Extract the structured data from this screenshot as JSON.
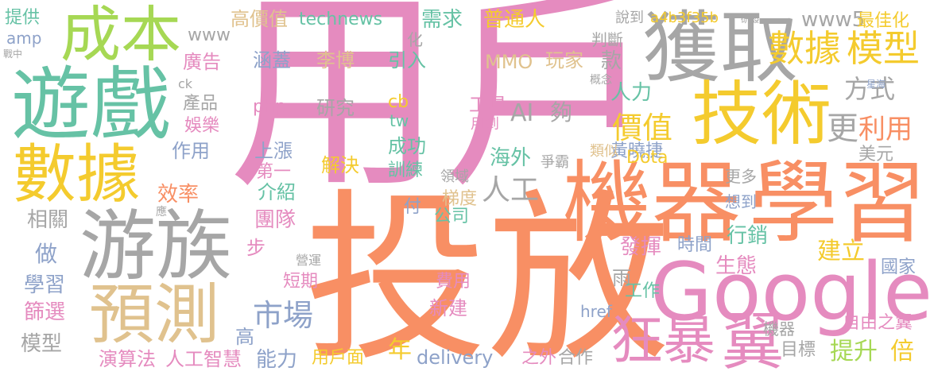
{
  "colors": {
    "pink": "#e58bbf",
    "orange": "#f88f64",
    "gray": "#a6a6a6",
    "teal": "#66c2a5",
    "yellow": "#f4cb2e",
    "blue": "#8ea2c9",
    "tan": "#e0c28e",
    "lime": "#a6d854"
  },
  "words": [
    {
      "text": "用戶",
      "color": "pink"
    },
    {
      "text": "投放",
      "color": "orange"
    },
    {
      "text": "機器",
      "color": "orange"
    },
    {
      "text": "學習",
      "color": "orange"
    },
    {
      "text": "Google",
      "color": "pink"
    },
    {
      "text": "遊戲",
      "color": "teal"
    },
    {
      "text": "獲取",
      "color": "gray"
    },
    {
      "text": "游族",
      "color": "gray"
    },
    {
      "text": "數據",
      "color": "yellow"
    },
    {
      "text": "技術",
      "color": "yellow"
    },
    {
      "text": "成本",
      "color": "lime"
    },
    {
      "text": "預測",
      "color": "tan"
    },
    {
      "text": "翼",
      "color": "pink"
    },
    {
      "text": "狂暴",
      "color": "pink"
    },
    {
      "text": "數據",
      "color": "yellow"
    },
    {
      "text": "模型",
      "color": "yellow"
    },
    {
      "text": "市場",
      "color": "blue"
    },
    {
      "text": "價值",
      "color": "yellow"
    },
    {
      "text": "人工",
      "color": "gray"
    },
    {
      "text": "更",
      "color": "gray"
    },
    {
      "text": "利用",
      "color": "orange"
    },
    {
      "text": "方式",
      "color": "gray"
    },
    {
      "text": "www5",
      "color": "gray"
    },
    {
      "text": "最佳化",
      "color": "yellow"
    },
    {
      "text": "高價值",
      "color": "tan"
    },
    {
      "text": "technews",
      "color": "teal"
    },
    {
      "text": "需求",
      "color": "teal"
    },
    {
      "text": "普通人",
      "color": "yellow"
    },
    {
      "text": "說到",
      "color": "gray"
    },
    {
      "text": "a4b3f35b",
      "color": "yellow"
    },
    {
      "text": "判斷",
      "color": "gray"
    },
    {
      "text": "提供",
      "color": "teal"
    },
    {
      "text": "amp",
      "color": "blue"
    },
    {
      "text": "www",
      "color": "gray"
    },
    {
      "text": "廣告",
      "color": "pink"
    },
    {
      "text": "涵蓋",
      "color": "blue"
    },
    {
      "text": "李博",
      "color": "tan"
    },
    {
      "text": "引入",
      "color": "teal"
    },
    {
      "text": "MMO",
      "color": "tan"
    },
    {
      "text": "玩家",
      "color": "tan"
    },
    {
      "text": "款",
      "color": "gray"
    },
    {
      "text": "產品",
      "color": "gray"
    },
    {
      "text": "php",
      "color": "pink"
    },
    {
      "text": "研究",
      "color": "gray"
    },
    {
      "text": "cb",
      "color": "yellow"
    },
    {
      "text": "tw",
      "color": "teal"
    },
    {
      "text": "工具",
      "color": "pink"
    },
    {
      "text": "AI",
      "color": "gray"
    },
    {
      "text": "夠",
      "color": "gray"
    },
    {
      "text": "用到",
      "color": "pink"
    },
    {
      "text": "人力",
      "color": "teal"
    },
    {
      "text": "娛樂",
      "color": "pink"
    },
    {
      "text": "作用",
      "color": "blue"
    },
    {
      "text": "上漲",
      "color": "blue"
    },
    {
      "text": "解決",
      "color": "yellow"
    },
    {
      "text": "成功",
      "color": "teal"
    },
    {
      "text": "海外",
      "color": "teal"
    },
    {
      "text": "爭霸",
      "color": "gray"
    },
    {
      "text": "黃曉捷",
      "color": "blue"
    },
    {
      "text": "類似",
      "color": "tan"
    },
    {
      "text": "美元",
      "color": "gray"
    },
    {
      "text": "第一",
      "color": "pink"
    },
    {
      "text": "訓練",
      "color": "teal"
    },
    {
      "text": "領域",
      "color": "gray"
    },
    {
      "text": "Dota",
      "color": "yellow"
    },
    {
      "text": "效率",
      "color": "orange"
    },
    {
      "text": "介紹",
      "color": "teal"
    },
    {
      "text": "梯度",
      "color": "tan"
    },
    {
      "text": "更多",
      "color": "gray"
    },
    {
      "text": "想到",
      "color": "blue"
    },
    {
      "text": "相關",
      "color": "gray"
    },
    {
      "text": "團隊",
      "color": "pink"
    },
    {
      "text": "付",
      "color": "blue"
    },
    {
      "text": "公司",
      "color": "teal"
    },
    {
      "text": "行銷",
      "color": "teal"
    },
    {
      "text": "建立",
      "color": "yellow"
    },
    {
      "text": "做",
      "color": "blue"
    },
    {
      "text": "發揮",
      "color": "pink"
    },
    {
      "text": "時間",
      "color": "blue"
    },
    {
      "text": "生態",
      "color": "pink"
    },
    {
      "text": "步",
      "color": "pink"
    },
    {
      "text": "國家",
      "color": "blue"
    },
    {
      "text": "學習",
      "color": "blue"
    },
    {
      "text": "短期",
      "color": "pink"
    },
    {
      "text": "費用",
      "color": "pink"
    },
    {
      "text": "雨",
      "color": "gray"
    },
    {
      "text": "篩選",
      "color": "pink"
    },
    {
      "text": "新建",
      "color": "pink"
    },
    {
      "text": "工作",
      "color": "teal"
    },
    {
      "text": "自由之翼",
      "color": "pink"
    },
    {
      "text": "模型",
      "color": "gray"
    },
    {
      "text": "href",
      "color": "blue"
    },
    {
      "text": "機器",
      "color": "gray"
    },
    {
      "text": "高",
      "color": "blue"
    },
    {
      "text": "演算法",
      "color": "pink"
    },
    {
      "text": "人工智慧",
      "color": "pink"
    },
    {
      "text": "能力",
      "color": "blue"
    },
    {
      "text": "用戶面",
      "color": "yellow"
    },
    {
      "text": "年",
      "color": "yellow"
    },
    {
      "text": "delivery",
      "color": "blue"
    },
    {
      "text": "之外",
      "color": "pink"
    },
    {
      "text": "合作",
      "color": "gray"
    },
    {
      "text": "目標",
      "color": "gray"
    },
    {
      "text": "提升",
      "color": "lime"
    },
    {
      "text": "倍",
      "color": "yellow"
    },
    {
      "text": "化",
      "color": "gray"
    },
    {
      "text": "研發",
      "color": "gray"
    },
    {
      "text": "戰中",
      "color": "gray"
    },
    {
      "text": "ck",
      "color": "gray"
    },
    {
      "text": "概念",
      "color": "gray"
    },
    {
      "text": "星海",
      "color": "blue"
    },
    {
      "text": "應",
      "color": "gray"
    },
    {
      "text": "營運",
      "color": "gray"
    }
  ]
}
